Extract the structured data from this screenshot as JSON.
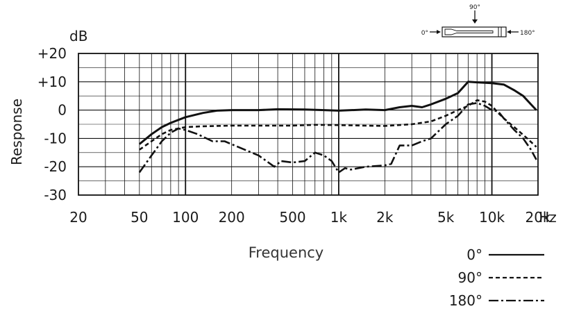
{
  "chart_data": {
    "type": "line",
    "xscale": "log",
    "xlim": [
      20,
      20000
    ],
    "ylim": [
      -30,
      20
    ],
    "ylabel": "Response",
    "xlabel": "Frequency",
    "y_unit": "dB",
    "x_unit": "Hz",
    "yticks": [
      {
        "value": 20,
        "label": "+20"
      },
      {
        "value": 10,
        "label": "+10"
      },
      {
        "value": 0,
        "label": "0"
      },
      {
        "value": -10,
        "label": "-10"
      },
      {
        "value": -20,
        "label": "-20"
      },
      {
        "value": -30,
        "label": "-30"
      }
    ],
    "xticks": [
      {
        "value": 20,
        "label": "20"
      },
      {
        "value": 50,
        "label": "50"
      },
      {
        "value": 100,
        "label": "100"
      },
      {
        "value": 200,
        "label": "200"
      },
      {
        "value": 500,
        "label": "500"
      },
      {
        "value": 1000,
        "label": "1k"
      },
      {
        "value": 2000,
        "label": "2k"
      },
      {
        "value": 5000,
        "label": "5k"
      },
      {
        "value": 10000,
        "label": "10k"
      },
      {
        "value": 20000,
        "label": "20k"
      }
    ],
    "grid": true,
    "legend_position": "bottom-right",
    "series": [
      {
        "name": "0°",
        "style": "solid",
        "points": [
          [
            50,
            -12
          ],
          [
            60,
            -8.5
          ],
          [
            70,
            -6
          ],
          [
            80,
            -4.5
          ],
          [
            100,
            -2.5
          ],
          [
            130,
            -1
          ],
          [
            160,
            -0.2
          ],
          [
            200,
            0
          ],
          [
            300,
            0
          ],
          [
            400,
            0.3
          ],
          [
            600,
            0.2
          ],
          [
            800,
            0
          ],
          [
            1000,
            -0.2
          ],
          [
            1500,
            0.2
          ],
          [
            2000,
            0
          ],
          [
            2500,
            1
          ],
          [
            3000,
            1.5
          ],
          [
            3500,
            1
          ],
          [
            4000,
            2
          ],
          [
            5000,
            4
          ],
          [
            6000,
            6
          ],
          [
            7000,
            10
          ],
          [
            8000,
            9.8
          ],
          [
            10000,
            9.5
          ],
          [
            12000,
            9
          ],
          [
            14000,
            7
          ],
          [
            16000,
            5
          ],
          [
            18000,
            2
          ],
          [
            19500,
            0
          ]
        ]
      },
      {
        "name": "90°",
        "style": "dashed",
        "points": [
          [
            50,
            -14
          ],
          [
            60,
            -11
          ],
          [
            70,
            -8.5
          ],
          [
            80,
            -7
          ],
          [
            100,
            -6
          ],
          [
            130,
            -5.7
          ],
          [
            200,
            -5.5
          ],
          [
            300,
            -5.5
          ],
          [
            500,
            -5.5
          ],
          [
            700,
            -5.2
          ],
          [
            1000,
            -5.3
          ],
          [
            1500,
            -5.5
          ],
          [
            2000,
            -5.6
          ],
          [
            3000,
            -5
          ],
          [
            4000,
            -4
          ],
          [
            5000,
            -2
          ],
          [
            6000,
            0
          ],
          [
            7000,
            1.5
          ],
          [
            8000,
            3.5
          ],
          [
            9000,
            3
          ],
          [
            10000,
            1.5
          ],
          [
            11000,
            -1
          ],
          [
            12000,
            -3
          ],
          [
            14000,
            -6
          ],
          [
            17000,
            -10
          ],
          [
            19500,
            -13
          ]
        ]
      },
      {
        "name": "180°",
        "style": "dash-dot",
        "points": [
          [
            50,
            -22
          ],
          [
            60,
            -16
          ],
          [
            70,
            -11
          ],
          [
            80,
            -8
          ],
          [
            90,
            -6.5
          ],
          [
            100,
            -7
          ],
          [
            120,
            -8.5
          ],
          [
            150,
            -11
          ],
          [
            180,
            -11
          ],
          [
            220,
            -13
          ],
          [
            300,
            -16
          ],
          [
            380,
            -20
          ],
          [
            420,
            -18
          ],
          [
            500,
            -18.5
          ],
          [
            600,
            -18
          ],
          [
            700,
            -15
          ],
          [
            800,
            -16
          ],
          [
            900,
            -18
          ],
          [
            1000,
            -22
          ],
          [
            1100,
            -20.5
          ],
          [
            1200,
            -21
          ],
          [
            1500,
            -20
          ],
          [
            2000,
            -19.5
          ],
          [
            2200,
            -19
          ],
          [
            2500,
            -12.5
          ],
          [
            3000,
            -12.5
          ],
          [
            3500,
            -11
          ],
          [
            4000,
            -10
          ],
          [
            5000,
            -5
          ],
          [
            6000,
            -2
          ],
          [
            7000,
            2
          ],
          [
            8000,
            2.5
          ],
          [
            9000,
            1.5
          ],
          [
            10000,
            0
          ],
          [
            11000,
            -0.5
          ],
          [
            12000,
            -3
          ],
          [
            14000,
            -7
          ],
          [
            16000,
            -10
          ],
          [
            18000,
            -14
          ],
          [
            19500,
            -17.5
          ]
        ]
      }
    ],
    "legend": [
      {
        "label": "0°",
        "style": "solid"
      },
      {
        "label": "90°",
        "style": "dashed"
      },
      {
        "label": "180°",
        "style": "dash-dot"
      }
    ]
  },
  "diagram": {
    "top_angle": "90°",
    "left_angle": "0°",
    "right_angle": "180°"
  }
}
